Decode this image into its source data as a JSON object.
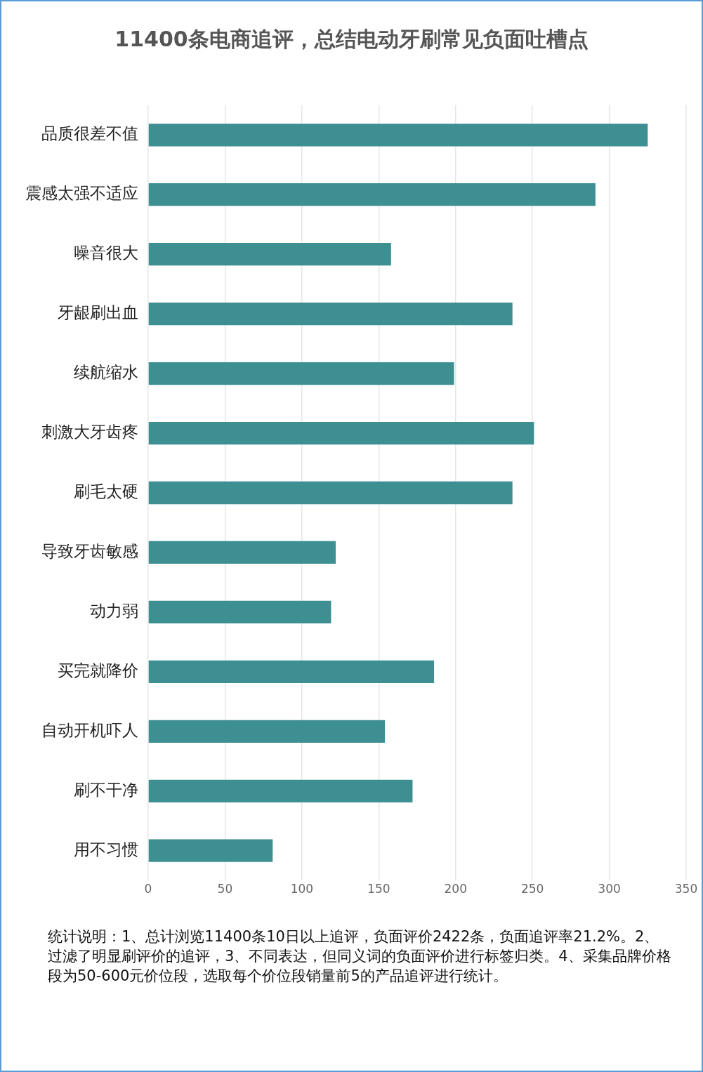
{
  "chart_data": {
    "type": "bar",
    "orientation": "horizontal",
    "title": "11400条电商追评，总结电动牙刷常见负面吐槽点",
    "categories": [
      "品质很差不值",
      "震感太强不适应",
      "噪音很大",
      "牙龈刷出血",
      "续航缩水",
      "刺激大牙齿疼",
      "刷毛太硬",
      "导致牙齿敏感",
      "动力弱",
      "买完就降价",
      "自动开机吓人",
      "刷不干净",
      "用不习惯"
    ],
    "values": [
      325,
      291,
      158,
      237,
      199,
      251,
      237,
      122,
      119,
      186,
      154,
      172,
      81
    ],
    "color": "#3d8f92",
    "xlim": [
      0,
      350
    ],
    "xticks": [
      0,
      50,
      100,
      150,
      200,
      250,
      300,
      350
    ],
    "grid": "x",
    "legend": false,
    "annotations": [
      "统计说明：1、总计浏览11400条10日以上追评，负面评价2422条，负面追评率21.2%。2、过滤了明显刷评价的追评，3、不同表达，但同义词的负面评价进行标签归类。4、采集品牌价格段为50-600元价位段，选取每个价位段销量前5的产品追评进行统计。"
    ]
  }
}
